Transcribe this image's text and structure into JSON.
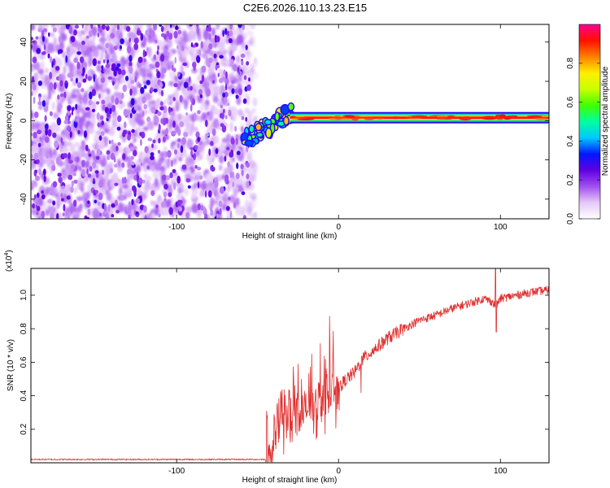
{
  "figure": {
    "title": "C2E6.2026.110.13.23.E15"
  },
  "chart_data": [
    {
      "type": "heatmap",
      "xlabel": "Height of straight line (km)",
      "ylabel": "Frequency (Hz)",
      "xlim": [
        -190,
        130
      ],
      "ylim": [
        -50,
        49
      ],
      "xticks": [
        -100,
        0,
        100
      ],
      "yticks": [
        -40,
        -20,
        0,
        20,
        40
      ],
      "colorbar": {
        "label": "Normalized spectral amplitude",
        "range": [
          0,
          1
        ],
        "ticks": [
          "0.0",
          "0.2",
          "0.4",
          "0.6",
          "0.8"
        ],
        "colors": [
          "#ffffff",
          "#e5c8f8",
          "#a050f0",
          "#6000e0",
          "#0018ff",
          "#00c8ff",
          "#00ffa0",
          "#40ff00",
          "#c8ff00",
          "#ffee00",
          "#ff8000",
          "#ff1000",
          "#ff0090"
        ]
      },
      "regions": [
        {
          "desc": "noise",
          "x": [
            -190,
            -55
          ],
          "y": [
            -50,
            49
          ],
          "amplitude": 0.15
        },
        {
          "desc": "transition",
          "x": [
            -58,
            -30
          ],
          "y": [
            -14,
            10
          ],
          "amplitude": 0.5
        },
        {
          "desc": "carrier",
          "x": [
            -30,
            130
          ],
          "y": [
            0,
            3
          ],
          "amplitude": 0.95
        }
      ]
    },
    {
      "type": "line",
      "xlabel": "Height of straight line (km)",
      "ylabel": "SNR (10 * v/v)",
      "yscale_label": "(x10",
      "yscale_exp": "4",
      "xlim": [
        -190,
        130
      ],
      "ylim": [
        0,
        1.16
      ],
      "xticks": [
        -100,
        0,
        100
      ],
      "yticks": [
        "0.2",
        "0.4",
        "0.6",
        "0.8",
        "1.0"
      ],
      "ytick_values": [
        0.2,
        0.4,
        0.6,
        0.8,
        1.0
      ],
      "color": "#e03030",
      "series": [
        {
          "x": [
            -190,
            -60,
            -45,
            -42,
            -38,
            -35,
            -30,
            -25,
            -20,
            -15,
            -10,
            -5,
            0,
            5,
            10,
            15,
            20,
            30,
            40,
            50,
            60,
            70,
            80,
            90,
            95,
            97,
            100,
            110,
            120,
            130
          ],
          "y": [
            0.02,
            0.02,
            0.02,
            0.05,
            0.2,
            0.3,
            0.28,
            0.3,
            0.32,
            0.35,
            0.4,
            0.42,
            0.45,
            0.5,
            0.54,
            0.62,
            0.66,
            0.74,
            0.8,
            0.85,
            0.88,
            0.92,
            0.95,
            0.98,
            0.96,
            0.93,
            0.98,
            1.0,
            1.02,
            1.03
          ]
        }
      ]
    }
  ]
}
